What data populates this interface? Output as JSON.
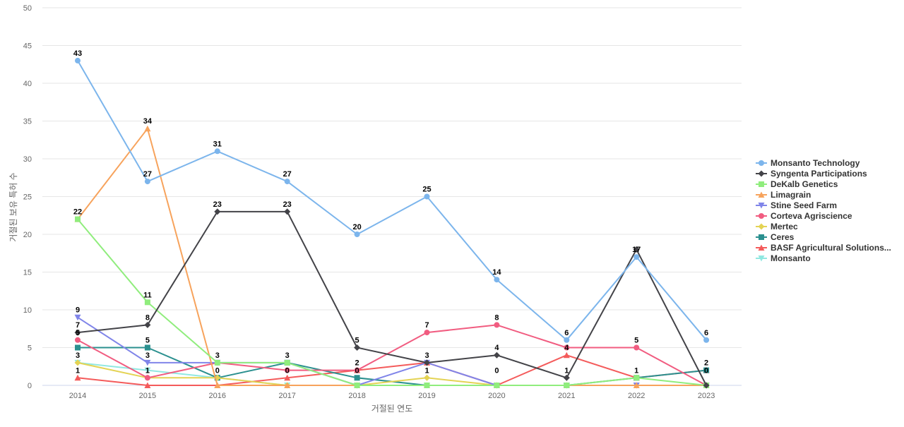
{
  "chart_data": {
    "type": "line",
    "xlabel": "거절된 연도",
    "ylabel": "거절된 보유 특허 수",
    "ylim": [
      0,
      50
    ],
    "yticks": [
      0,
      5,
      10,
      15,
      20,
      25,
      30,
      35,
      40,
      45,
      50
    ],
    "grid": true,
    "legend_position": "right",
    "x": [
      "2014",
      "2015",
      "2016",
      "2017",
      "2018",
      "2019",
      "2020",
      "2021",
      "2022",
      "2023"
    ],
    "series": [
      {
        "name": "Monsanto Technology",
        "color": "#7cb5ec",
        "marker": "circle",
        "values": [
          43,
          27,
          31,
          27,
          20,
          25,
          14,
          6,
          17,
          6
        ]
      },
      {
        "name": "Syngenta Participations",
        "color": "#434348",
        "marker": "diamond",
        "values": [
          7,
          8,
          23,
          23,
          5,
          3,
          4,
          1,
          18,
          0
        ]
      },
      {
        "name": "DeKalb Genetics",
        "color": "#90ed7d",
        "marker": "square",
        "values": [
          22,
          11,
          3,
          3,
          0,
          0,
          0,
          0,
          1,
          0
        ]
      },
      {
        "name": "Limagrain",
        "color": "#f7a35c",
        "marker": "triangle",
        "values": [
          22,
          34,
          0,
          0,
          0,
          0,
          0,
          0,
          0,
          0
        ]
      },
      {
        "name": "Stine Seed Farm",
        "color": "#8085e9",
        "marker": "triangle-down",
        "values": [
          9,
          3,
          3,
          3,
          0,
          3,
          0,
          0,
          0,
          0
        ]
      },
      {
        "name": "Corteva Agriscience",
        "color": "#f15c80",
        "marker": "circle",
        "values": [
          6,
          1,
          3,
          2,
          2,
          7,
          8,
          5,
          5,
          0
        ]
      },
      {
        "name": "Mertec",
        "color": "#e4d354",
        "marker": "diamond",
        "values": [
          3,
          1,
          1,
          0,
          0,
          1,
          0,
          0,
          0,
          0
        ]
      },
      {
        "name": "Ceres",
        "color": "#2b908f",
        "marker": "square",
        "values": [
          5,
          5,
          1,
          3,
          1,
          0,
          0,
          0,
          1,
          2
        ]
      },
      {
        "name": "BASF Agricultural Solutions...",
        "color": "#f45b5b",
        "marker": "triangle",
        "values": [
          1,
          0,
          0,
          1,
          2,
          3,
          0,
          4,
          1,
          2
        ]
      },
      {
        "name": "Monsanto",
        "color": "#91e8e1",
        "marker": "triangle-down",
        "values": [
          3,
          2,
          1,
          0,
          0,
          0,
          0,
          0,
          0,
          0
        ]
      }
    ],
    "data_labels": [
      {
        "x": "2014",
        "text": "43",
        "value": 43
      },
      {
        "x": "2014",
        "text": "22",
        "value": 22
      },
      {
        "x": "2014",
        "text": "9",
        "value": 9
      },
      {
        "x": "2014",
        "text": "7",
        "value": 7
      },
      {
        "x": "2014",
        "text": "5",
        "value": 6
      },
      {
        "x": "2014",
        "text": "3",
        "value": 3
      },
      {
        "x": "2014",
        "text": "1",
        "value": 1
      },
      {
        "x": "2015",
        "text": "34",
        "value": 34
      },
      {
        "x": "2015",
        "text": "27",
        "value": 27
      },
      {
        "x": "2015",
        "text": "11",
        "value": 11
      },
      {
        "x": "2015",
        "text": "8",
        "value": 8
      },
      {
        "x": "2015",
        "text": "5",
        "value": 5
      },
      {
        "x": "2015",
        "text": "3",
        "value": 3
      },
      {
        "x": "2015",
        "text": "1",
        "value": 1
      },
      {
        "x": "2016",
        "text": "31",
        "value": 31
      },
      {
        "x": "2016",
        "text": "23",
        "value": 23
      },
      {
        "x": "2016",
        "text": "3",
        "value": 3
      },
      {
        "x": "2016",
        "text": "0",
        "value": 1
      },
      {
        "x": "2017",
        "text": "27",
        "value": 27
      },
      {
        "x": "2017",
        "text": "23",
        "value": 23
      },
      {
        "x": "2017",
        "text": "3",
        "value": 3
      },
      {
        "x": "2017",
        "text": "0",
        "value": 1
      },
      {
        "x": "2018",
        "text": "20",
        "value": 20
      },
      {
        "x": "2018",
        "text": "5",
        "value": 5
      },
      {
        "x": "2018",
        "text": "2",
        "value": 2
      },
      {
        "x": "2018",
        "text": "0",
        "value": 1
      },
      {
        "x": "2019",
        "text": "25",
        "value": 25
      },
      {
        "x": "2019",
        "text": "7",
        "value": 7
      },
      {
        "x": "2019",
        "text": "3",
        "value": 3
      },
      {
        "x": "2019",
        "text": "1",
        "value": 1
      },
      {
        "x": "2020",
        "text": "14",
        "value": 14
      },
      {
        "x": "2020",
        "text": "8",
        "value": 8
      },
      {
        "x": "2020",
        "text": "4",
        "value": 4
      },
      {
        "x": "2020",
        "text": "0",
        "value": 1
      },
      {
        "x": "2021",
        "text": "6",
        "value": 6
      },
      {
        "x": "2021",
        "text": "4",
        "value": 4
      },
      {
        "x": "2021",
        "text": "1",
        "value": 1
      },
      {
        "x": "2022",
        "text": "17",
        "value": 17
      },
      {
        "x": "2022",
        "text": "5",
        "value": 5
      },
      {
        "x": "2022",
        "text": "1",
        "value": 1
      },
      {
        "x": "2023",
        "text": "6",
        "value": 6
      },
      {
        "x": "2023",
        "text": "2",
        "value": 2
      },
      {
        "x": "2023",
        "text": "0",
        "value": 1
      }
    ]
  }
}
